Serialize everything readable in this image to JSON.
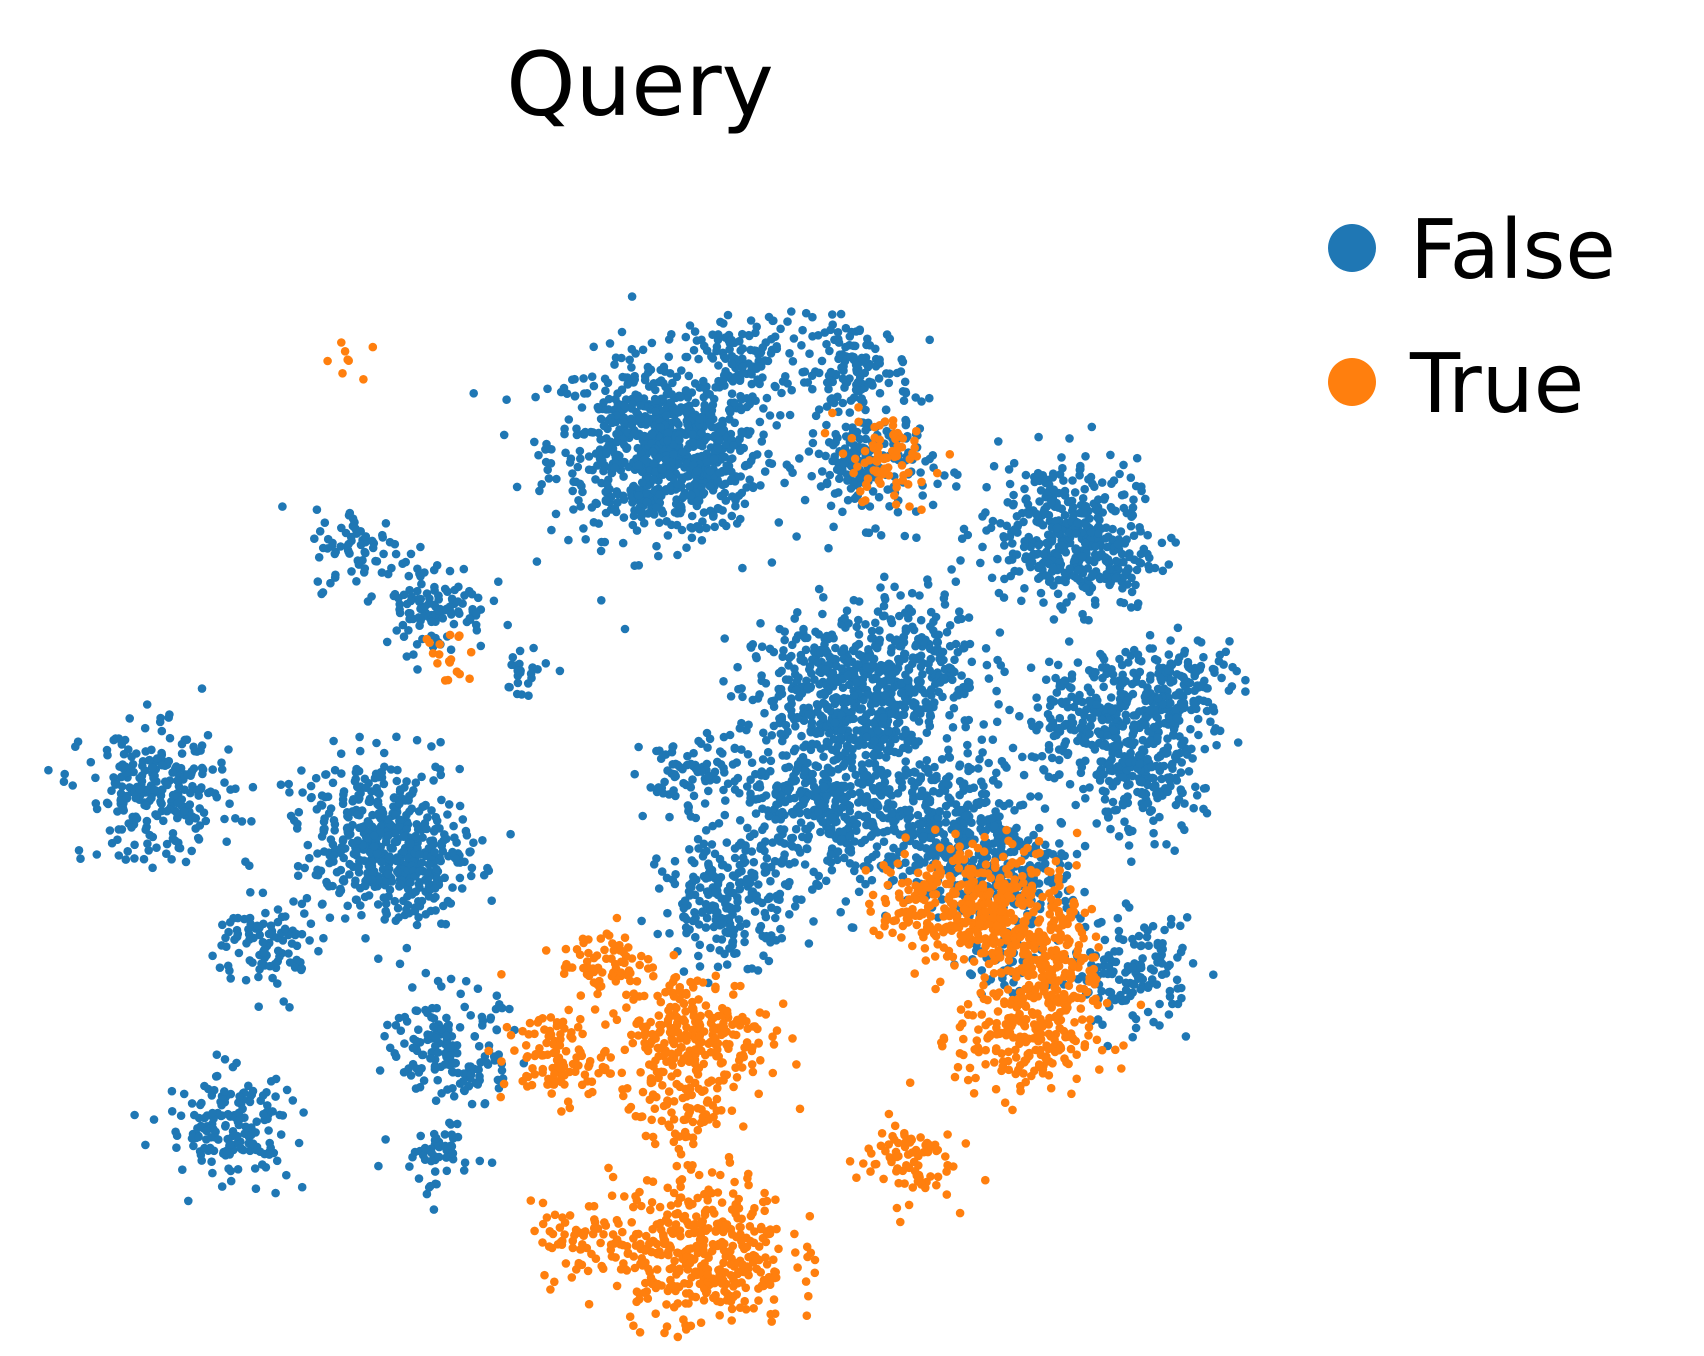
{
  "chart_data": {
    "type": "scatter",
    "title": "Query",
    "xlabel": "",
    "ylabel": "",
    "axes_visible": false,
    "grid": false,
    "legend_position": "right",
    "series": [
      {
        "name": "False",
        "color": "#1f77b4",
        "clusters": [
          {
            "cx": 0.51,
            "cy": 0.779,
            "n": 620
          },
          {
            "cx": 0.537,
            "cy": 0.76,
            "n": 240
          },
          {
            "cx": 0.594,
            "cy": 0.86,
            "n": 110
          },
          {
            "cx": 0.692,
            "cy": 0.85,
            "n": 140
          },
          {
            "cx": 0.707,
            "cy": 0.76,
            "n": 180
          },
          {
            "cx": 0.88,
            "cy": 0.701,
            "n": 320
          },
          {
            "cx": 0.918,
            "cy": 0.671,
            "n": 130
          },
          {
            "cx": 0.24,
            "cy": 0.681,
            "n": 70
          },
          {
            "cx": 0.307,
            "cy": 0.628,
            "n": 110
          },
          {
            "cx": 0.389,
            "cy": 0.566,
            "n": 25
          },
          {
            "cx": 0.663,
            "cy": 0.546,
            "n": 320
          },
          {
            "cx": 0.737,
            "cy": 0.574,
            "n": 320
          },
          {
            "cx": 0.667,
            "cy": 0.434,
            "n": 380
          },
          {
            "cx": 0.78,
            "cy": 0.418,
            "n": 380
          },
          {
            "cx": 0.715,
            "cy": 0.508,
            "n": 110
          },
          {
            "cx": 0.544,
            "cy": 0.466,
            "n": 90
          },
          {
            "cx": 0.579,
            "cy": 0.349,
            "n": 220
          },
          {
            "cx": 0.92,
            "cy": 0.52,
            "n": 280
          },
          {
            "cx": 0.958,
            "cy": 0.462,
            "n": 160
          },
          {
            "cx": 0.993,
            "cy": 0.55,
            "n": 160
          },
          {
            "cx": 0.846,
            "cy": 0.378,
            "n": 160
          },
          {
            "cx": 0.83,
            "cy": 0.286,
            "n": 45
          },
          {
            "cx": 0.948,
            "cy": 0.281,
            "n": 150
          },
          {
            "cx": 0.053,
            "cy": 0.449,
            "n": 260
          },
          {
            "cx": 0.257,
            "cy": 0.415,
            "n": 360
          },
          {
            "cx": 0.28,
            "cy": 0.38,
            "n": 180
          },
          {
            "cx": 0.154,
            "cy": 0.308,
            "n": 100
          },
          {
            "cx": 0.316,
            "cy": 0.221,
            "n": 120
          },
          {
            "cx": 0.336,
            "cy": 0.18,
            "n": 50
          },
          {
            "cx": 0.119,
            "cy": 0.137,
            "n": 170
          },
          {
            "cx": 0.31,
            "cy": 0.105,
            "n": 50
          }
        ]
      },
      {
        "name": "True",
        "color": "#ff7f0e",
        "clusters": [
          {
            "cx": 0.232,
            "cy": 0.861,
            "n": 8
          },
          {
            "cx": 0.72,
            "cy": 0.764,
            "n": 80
          },
          {
            "cx": 0.313,
            "cy": 0.576,
            "n": 18
          },
          {
            "cx": 0.775,
            "cy": 0.348,
            "n": 180
          },
          {
            "cx": 0.837,
            "cy": 0.345,
            "n": 220
          },
          {
            "cx": 0.871,
            "cy": 0.285,
            "n": 160
          },
          {
            "cx": 0.85,
            "cy": 0.22,
            "n": 220
          },
          {
            "cx": 0.466,
            "cy": 0.292,
            "n": 70
          },
          {
            "cx": 0.545,
            "cy": 0.22,
            "n": 280
          },
          {
            "cx": 0.418,
            "cy": 0.2,
            "n": 110
          },
          {
            "cx": 0.537,
            "cy": 0.143,
            "n": 50
          },
          {
            "cx": 0.74,
            "cy": 0.105,
            "n": 80
          },
          {
            "cx": 0.552,
            "cy": 0.019,
            "n": 420
          },
          {
            "cx": 0.437,
            "cy": 0.025,
            "n": 60
          }
        ]
      }
    ],
    "legend": [
      "False",
      "True"
    ]
  }
}
